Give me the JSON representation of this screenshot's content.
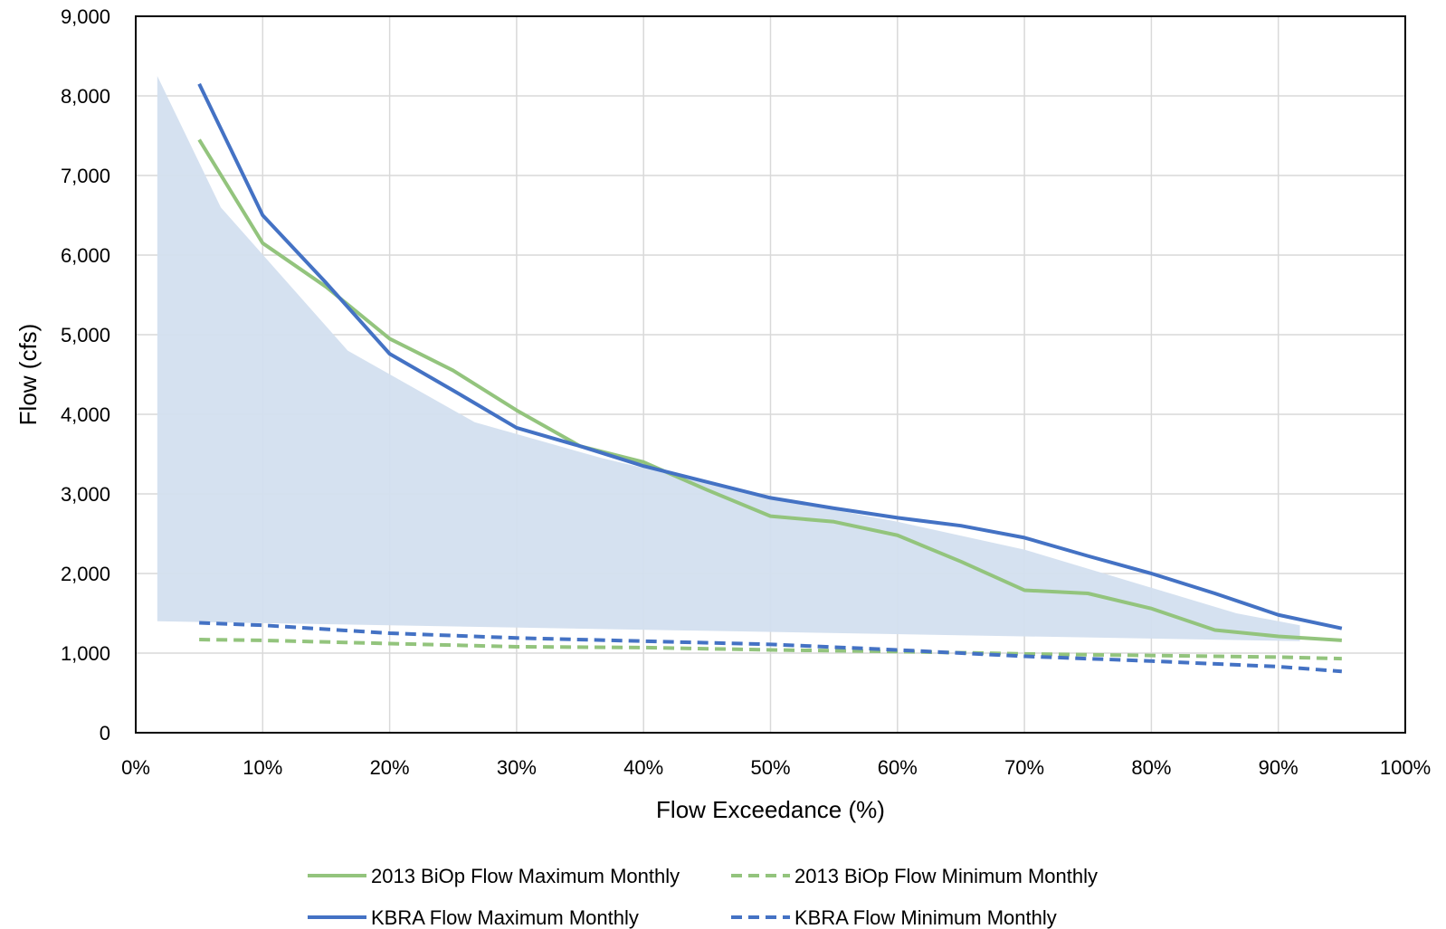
{
  "chart_data": {
    "type": "line",
    "xlabel": "Flow Exceedance (%)",
    "ylabel": "Flow (cfs)",
    "xlim": [
      0,
      100
    ],
    "ylim": [
      0,
      9000
    ],
    "x_ticks": [
      "0%",
      "10%",
      "20%",
      "30%",
      "40%",
      "50%",
      "60%",
      "70%",
      "80%",
      "90%",
      "100%"
    ],
    "y_ticks": [
      "0",
      "1,000",
      "2,000",
      "3,000",
      "4,000",
      "5,000",
      "6,000",
      "7,000",
      "8,000",
      "9,000"
    ],
    "grid": true,
    "legend_position": "bottom",
    "shaded_band": {
      "color": "#d3dfef",
      "upper": [
        [
          1.7,
          8250
        ],
        [
          6.7,
          6600
        ],
        [
          16.7,
          4800
        ],
        [
          26.7,
          3900
        ],
        [
          36.7,
          3450
        ],
        [
          50,
          2950
        ],
        [
          60,
          2650
        ],
        [
          70,
          2300
        ],
        [
          86.7,
          1500
        ],
        [
          91.7,
          1350
        ]
      ],
      "lower": [
        [
          1.7,
          1400
        ],
        [
          91.7,
          1150
        ]
      ]
    },
    "series": [
      {
        "name": "2013 BiOp Flow Maximum Monthly",
        "color": "#93c47d",
        "dashed": false,
        "points": [
          [
            5,
            7450
          ],
          [
            10,
            6150
          ],
          [
            15,
            5600
          ],
          [
            20,
            4950
          ],
          [
            25,
            4550
          ],
          [
            30,
            4050
          ],
          [
            35,
            3600
          ],
          [
            40,
            3400
          ],
          [
            45,
            3050
          ],
          [
            50,
            2720
          ],
          [
            55,
            2650
          ],
          [
            60,
            2480
          ],
          [
            65,
            2150
          ],
          [
            70,
            1790
          ],
          [
            75,
            1750
          ],
          [
            80,
            1560
          ],
          [
            85,
            1290
          ],
          [
            90,
            1210
          ],
          [
            95,
            1160
          ]
        ]
      },
      {
        "name": "2013 BiOp Flow Minimum Monthly",
        "color": "#93c47d",
        "dashed": true,
        "points": [
          [
            5,
            1170
          ],
          [
            10,
            1160
          ],
          [
            20,
            1120
          ],
          [
            30,
            1080
          ],
          [
            40,
            1070
          ],
          [
            50,
            1040
          ],
          [
            60,
            1020
          ],
          [
            70,
            990
          ],
          [
            80,
            970
          ],
          [
            90,
            950
          ],
          [
            95,
            930
          ]
        ]
      },
      {
        "name": "KBRA Flow Maximum Monthly",
        "color": "#4472c4",
        "dashed": false,
        "points": [
          [
            5,
            8150
          ],
          [
            10,
            6500
          ],
          [
            15,
            5650
          ],
          [
            20,
            4760
          ],
          [
            25,
            4300
          ],
          [
            30,
            3830
          ],
          [
            35,
            3600
          ],
          [
            40,
            3350
          ],
          [
            45,
            3150
          ],
          [
            50,
            2950
          ],
          [
            55,
            2820
          ],
          [
            60,
            2700
          ],
          [
            65,
            2600
          ],
          [
            70,
            2450
          ],
          [
            75,
            2220
          ],
          [
            80,
            2000
          ],
          [
            85,
            1750
          ],
          [
            90,
            1480
          ],
          [
            95,
            1310
          ]
        ]
      },
      {
        "name": "KBRA Flow Minimum Monthly",
        "color": "#4472c4",
        "dashed": true,
        "points": [
          [
            5,
            1380
          ],
          [
            10,
            1350
          ],
          [
            20,
            1250
          ],
          [
            30,
            1190
          ],
          [
            40,
            1150
          ],
          [
            50,
            1110
          ],
          [
            60,
            1040
          ],
          [
            70,
            960
          ],
          [
            80,
            900
          ],
          [
            90,
            830
          ],
          [
            95,
            770
          ]
        ]
      }
    ]
  }
}
